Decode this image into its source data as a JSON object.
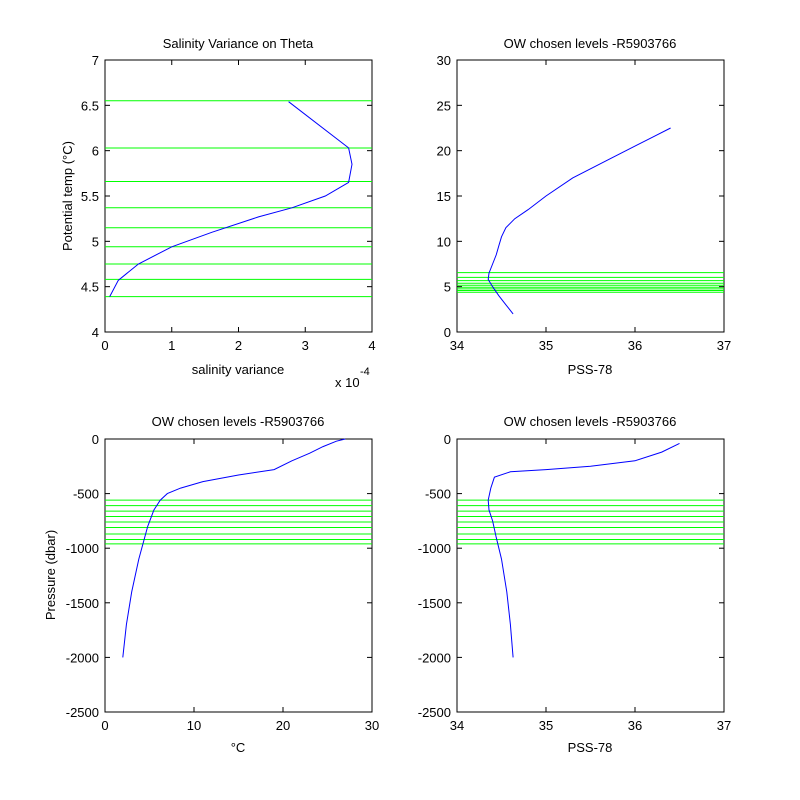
{
  "figure": {
    "colors": {
      "background": "#ffffff",
      "profile_line": "#0000ff",
      "level_line": "#00ff00",
      "axis": "#000000"
    }
  },
  "chart_data": [
    {
      "id": "salinity-variance",
      "type": "line",
      "title": "Salinity Variance on Theta",
      "xlabel": "salinity variance",
      "ylabel": "Potential temp (°C)",
      "xlim": [
        0,
        4
      ],
      "ylim": [
        4,
        7
      ],
      "x_ticks": [
        "0",
        "1",
        "2",
        "3",
        "4"
      ],
      "y_ticks": [
        "4",
        "4.5",
        "5",
        "5.5",
        "6",
        "6.5",
        "7"
      ],
      "x_exponent": "x 10",
      "x_exponent_power": "-4",
      "grid": false,
      "series": [
        {
          "x": [
            0.07,
            0.2,
            0.5,
            1.0,
            1.6,
            2.3,
            2.8,
            3.3,
            3.65,
            3.7,
            3.65,
            2.75
          ],
          "y": [
            4.39,
            4.57,
            4.75,
            4.94,
            5.1,
            5.27,
            5.37,
            5.5,
            5.65,
            5.85,
            6.03,
            6.54
          ]
        }
      ],
      "levels": [
        4.39,
        4.58,
        4.75,
        4.94,
        5.15,
        5.37,
        5.66,
        6.03,
        6.55
      ]
    },
    {
      "id": "theta-salinity",
      "type": "line",
      "title": "OW chosen levels -R5903766",
      "xlabel": "PSS-78",
      "ylabel": "",
      "xlim": [
        34,
        37
      ],
      "ylim": [
        0,
        30
      ],
      "x_ticks": [
        "34",
        "35",
        "36",
        "37"
      ],
      "y_ticks": [
        "0",
        "5",
        "10",
        "15",
        "20",
        "25",
        "30"
      ],
      "grid": false,
      "series": [
        {
          "x": [
            34.63,
            34.55,
            34.47,
            34.4,
            34.35,
            34.36,
            34.4,
            34.44,
            34.47,
            34.5,
            34.55,
            34.65,
            34.8,
            35.0,
            35.3,
            35.7,
            36.0,
            36.2,
            36.4
          ],
          "y": [
            2.0,
            3.0,
            4.0,
            5.0,
            5.8,
            6.5,
            7.5,
            8.5,
            9.5,
            10.5,
            11.5,
            12.5,
            13.5,
            15.0,
            17.0,
            19.0,
            20.5,
            21.5,
            22.5
          ]
        }
      ],
      "levels": [
        4.39,
        4.58,
        4.75,
        4.94,
        5.15,
        5.37,
        5.66,
        6.03,
        6.55
      ]
    },
    {
      "id": "temp-pressure",
      "type": "line",
      "title": "OW chosen levels -R5903766",
      "xlabel": "°C",
      "ylabel": "Pressure (dbar)",
      "xlim": [
        0,
        30
      ],
      "ylim": [
        -2500,
        0
      ],
      "x_ticks": [
        "0",
        "10",
        "20",
        "30"
      ],
      "y_ticks": [
        "-2500",
        "-2000",
        "-1500",
        "-1000",
        "-500",
        "0"
      ],
      "grid": false,
      "series": [
        {
          "x": [
            2.0,
            2.4,
            3.0,
            3.8,
            4.8,
            5.5,
            6.2,
            7.0,
            8.5,
            11.0,
            15.0,
            19.0,
            21.0,
            23.0,
            24.5,
            26.0,
            27.0
          ],
          "y": [
            -2000,
            -1700,
            -1400,
            -1100,
            -800,
            -650,
            -560,
            -500,
            -450,
            -390,
            -330,
            -280,
            -200,
            -130,
            -70,
            -20,
            0
          ]
        }
      ],
      "levels": [
        -560,
        -610,
        -660,
        -710,
        -760,
        -810,
        -870,
        -920,
        -960
      ]
    },
    {
      "id": "salinity-pressure",
      "type": "line",
      "title": "OW chosen levels -R5903766",
      "xlabel": "PSS-78",
      "ylabel": "",
      "xlim": [
        34,
        37
      ],
      "ylim": [
        -2500,
        0
      ],
      "x_ticks": [
        "34",
        "35",
        "36",
        "37"
      ],
      "y_ticks": [
        "-2500",
        "-2000",
        "-1500",
        "-1000",
        "-500",
        "0"
      ],
      "grid": false,
      "series": [
        {
          "x": [
            34.63,
            34.6,
            34.56,
            34.5,
            34.44,
            34.4,
            34.36,
            34.35,
            34.38,
            34.42,
            34.6,
            35.0,
            35.5,
            36.0,
            36.3,
            36.5
          ],
          "y": [
            -2000,
            -1700,
            -1400,
            -1100,
            -900,
            -750,
            -650,
            -560,
            -450,
            -350,
            -300,
            -280,
            -250,
            -200,
            -120,
            -40
          ]
        }
      ],
      "levels": [
        -560,
        -610,
        -660,
        -710,
        -760,
        -810,
        -870,
        -920,
        -960
      ]
    }
  ]
}
